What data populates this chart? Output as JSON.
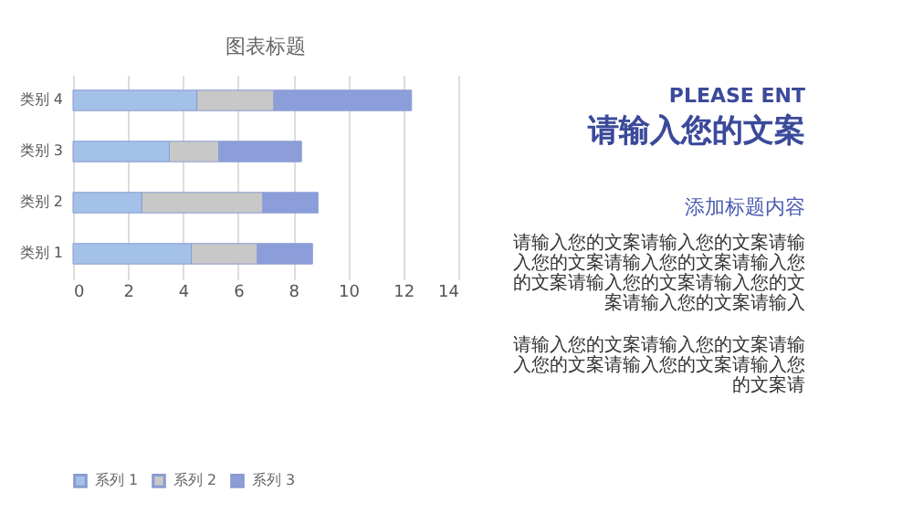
{
  "chart_data": {
    "type": "bar",
    "orientation": "horizontal",
    "stacked": true,
    "title": "图表标题",
    "categories": [
      "类别 4",
      "类别 3",
      "类别 2",
      "类别 1"
    ],
    "series": [
      {
        "name": "系列 1",
        "color": "#a3c1e9",
        "values": [
          4.5,
          3.5,
          2.5,
          4.3
        ]
      },
      {
        "name": "系列 2",
        "color": "#c8c8c8",
        "values": [
          2.8,
          1.8,
          4.4,
          2.4
        ]
      },
      {
        "name": "系列 3",
        "color": "#8c9ed9",
        "values": [
          5,
          3,
          2,
          2
        ]
      }
    ],
    "xlim": [
      0,
      14
    ],
    "xticks": [
      0,
      2,
      4,
      6,
      8,
      10,
      12,
      14
    ],
    "grid": "x",
    "legend": "bottom",
    "annotations": [
      "PLEASE ENT",
      "请输入您的文案",
      "添加标题内容",
      "请输入您的文案请输入您的文案请输入您的文案请输入您的文案请输入您的文案请输入您的文案请输入您的文案请输入您的文案请输入",
      "请输入您的文案请输入您的文案请输入您的文案请输入您的文案请输入您的文案请"
    ]
  }
}
